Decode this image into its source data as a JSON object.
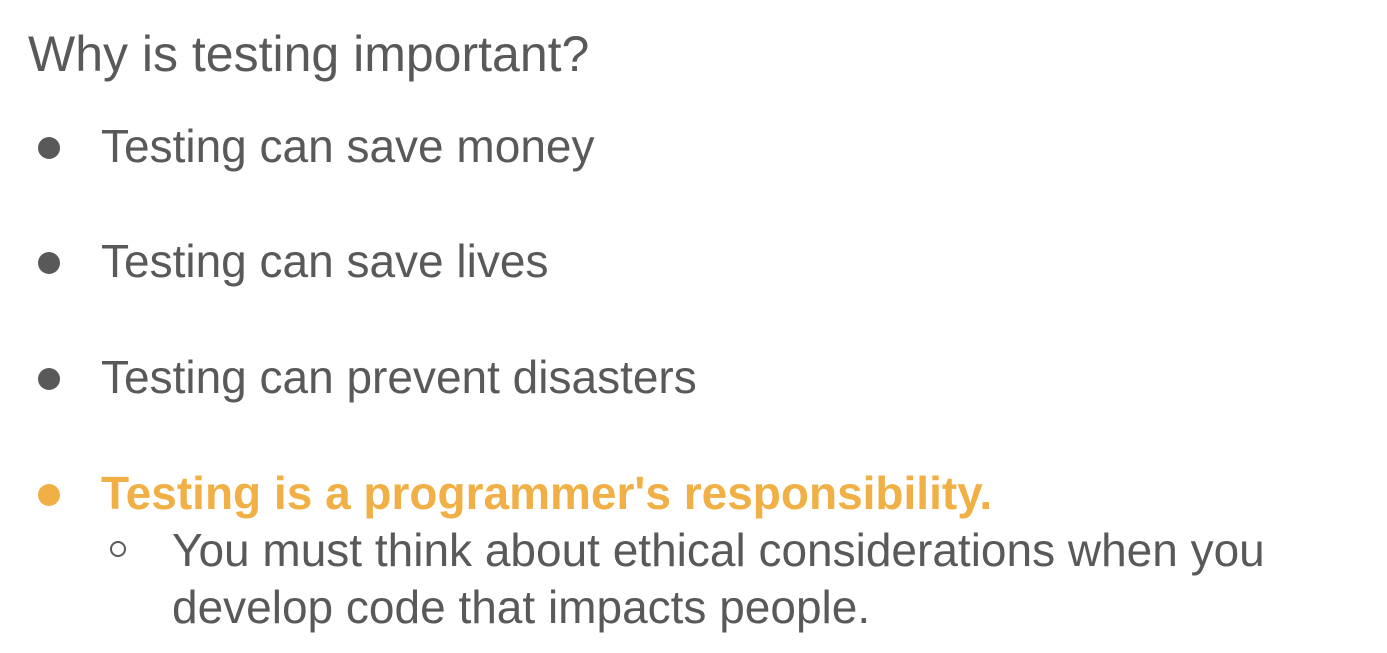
{
  "slide": {
    "title": "Why is testing important?",
    "bullets": [
      {
        "text": "Testing can save money"
      },
      {
        "text": "Testing can save lives"
      },
      {
        "text": "Testing can prevent disasters"
      },
      {
        "text": "Testing is a programmer's responsibility.",
        "sub_bullets": [
          {
            "text": "You must think about ethical considerations when you develop code that impacts people."
          }
        ]
      }
    ]
  },
  "colors": {
    "text": "#595959",
    "accent": "#f1b045",
    "background": "#ffffff"
  }
}
